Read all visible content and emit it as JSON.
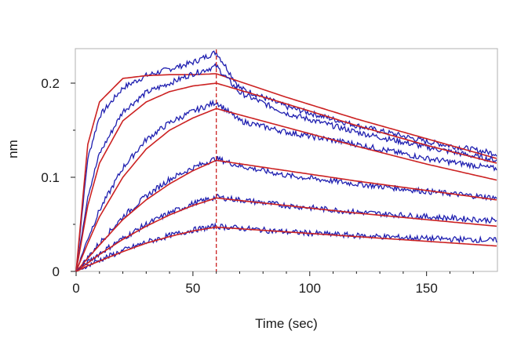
{
  "chart_data": {
    "type": "line",
    "title": "",
    "xlabel": "Time (sec)",
    "ylabel": "nm",
    "xlim": [
      0,
      180
    ],
    "ylim": [
      0,
      0.235
    ],
    "x_ticks": [
      0,
      50,
      100,
      150
    ],
    "y_ticks": [
      0,
      0.1,
      0.2
    ],
    "x_tick_labels": [
      "0",
      "50",
      "100",
      "150"
    ],
    "y_tick_labels": [
      "0",
      "0.1",
      "0.2"
    ],
    "grid": false,
    "legend": "none",
    "association_end": 60,
    "marker_line": {
      "x": 60,
      "style": "dashed",
      "color": "#cc2222"
    },
    "colors": {
      "measured": "#1f1fb0",
      "fit": "#cc2222",
      "frame": "#b0b0b0"
    },
    "series": [
      {
        "kind": "measured",
        "points": [
          [
            0,
            0
          ],
          [
            5,
            0.12
          ],
          [
            10,
            0.165
          ],
          [
            20,
            0.195
          ],
          [
            30,
            0.208
          ],
          [
            40,
            0.215
          ],
          [
            50,
            0.222
          ],
          [
            60,
            0.233
          ],
          [
            70,
            0.195
          ],
          [
            90,
            0.175
          ],
          [
            120,
            0.155
          ],
          [
            150,
            0.138
          ],
          [
            180,
            0.125
          ]
        ]
      },
      {
        "kind": "fit",
        "points": [
          [
            0,
            0
          ],
          [
            5,
            0.135
          ],
          [
            10,
            0.18
          ],
          [
            20,
            0.205
          ],
          [
            30,
            0.208
          ],
          [
            40,
            0.209
          ],
          [
            50,
            0.209
          ],
          [
            60,
            0.21
          ],
          [
            90,
            0.185
          ],
          [
            120,
            0.162
          ],
          [
            150,
            0.141
          ],
          [
            180,
            0.12
          ]
        ]
      },
      {
        "kind": "measured",
        "points": [
          [
            0,
            0
          ],
          [
            5,
            0.08
          ],
          [
            10,
            0.125
          ],
          [
            20,
            0.17
          ],
          [
            30,
            0.19
          ],
          [
            40,
            0.2
          ],
          [
            50,
            0.21
          ],
          [
            60,
            0.218
          ],
          [
            70,
            0.19
          ],
          [
            90,
            0.168
          ],
          [
            120,
            0.148
          ],
          [
            150,
            0.132
          ],
          [
            180,
            0.118
          ]
        ]
      },
      {
        "kind": "fit",
        "points": [
          [
            0,
            0
          ],
          [
            5,
            0.07
          ],
          [
            10,
            0.115
          ],
          [
            20,
            0.16
          ],
          [
            30,
            0.18
          ],
          [
            40,
            0.191
          ],
          [
            50,
            0.197
          ],
          [
            60,
            0.2
          ],
          [
            90,
            0.178
          ],
          [
            120,
            0.155
          ],
          [
            150,
            0.134
          ],
          [
            180,
            0.115
          ]
        ]
      },
      {
        "kind": "measured",
        "points": [
          [
            0,
            0
          ],
          [
            5,
            0.035
          ],
          [
            10,
            0.065
          ],
          [
            20,
            0.11
          ],
          [
            30,
            0.14
          ],
          [
            40,
            0.158
          ],
          [
            50,
            0.17
          ],
          [
            60,
            0.18
          ],
          [
            70,
            0.16
          ],
          [
            90,
            0.148
          ],
          [
            120,
            0.135
          ],
          [
            150,
            0.12
          ],
          [
            180,
            0.109
          ]
        ]
      },
      {
        "kind": "fit",
        "points": [
          [
            0,
            0
          ],
          [
            5,
            0.03
          ],
          [
            10,
            0.058
          ],
          [
            20,
            0.1
          ],
          [
            30,
            0.13
          ],
          [
            40,
            0.15
          ],
          [
            50,
            0.163
          ],
          [
            60,
            0.173
          ],
          [
            90,
            0.153
          ],
          [
            120,
            0.133
          ],
          [
            150,
            0.114
          ],
          [
            180,
            0.097
          ]
        ]
      },
      {
        "kind": "measured",
        "points": [
          [
            0,
            0
          ],
          [
            5,
            0.015
          ],
          [
            10,
            0.03
          ],
          [
            20,
            0.058
          ],
          [
            30,
            0.08
          ],
          [
            40,
            0.098
          ],
          [
            50,
            0.11
          ],
          [
            60,
            0.12
          ],
          [
            70,
            0.112
          ],
          [
            90,
            0.102
          ],
          [
            120,
            0.093
          ],
          [
            150,
            0.085
          ],
          [
            180,
            0.078
          ]
        ]
      },
      {
        "kind": "fit",
        "points": [
          [
            0,
            0
          ],
          [
            5,
            0.014
          ],
          [
            10,
            0.028
          ],
          [
            20,
            0.055
          ],
          [
            30,
            0.076
          ],
          [
            40,
            0.093
          ],
          [
            50,
            0.107
          ],
          [
            60,
            0.118
          ],
          [
            90,
            0.107
          ],
          [
            120,
            0.096
          ],
          [
            150,
            0.086
          ],
          [
            180,
            0.076
          ]
        ]
      },
      {
        "kind": "measured",
        "points": [
          [
            0,
            0
          ],
          [
            5,
            0.01
          ],
          [
            10,
            0.019
          ],
          [
            20,
            0.035
          ],
          [
            30,
            0.05
          ],
          [
            40,
            0.062
          ],
          [
            50,
            0.072
          ],
          [
            60,
            0.079
          ],
          [
            70,
            0.076
          ],
          [
            90,
            0.07
          ],
          [
            120,
            0.063
          ],
          [
            150,
            0.058
          ],
          [
            180,
            0.054
          ]
        ]
      },
      {
        "kind": "fit",
        "points": [
          [
            0,
            0
          ],
          [
            5,
            0.009
          ],
          [
            10,
            0.018
          ],
          [
            20,
            0.034
          ],
          [
            30,
            0.048
          ],
          [
            40,
            0.06
          ],
          [
            50,
            0.07
          ],
          [
            60,
            0.078
          ],
          [
            90,
            0.07
          ],
          [
            120,
            0.062
          ],
          [
            150,
            0.055
          ],
          [
            180,
            0.048
          ]
        ]
      },
      {
        "kind": "measured",
        "points": [
          [
            0,
            0
          ],
          [
            5,
            0.006
          ],
          [
            10,
            0.012
          ],
          [
            20,
            0.022
          ],
          [
            30,
            0.031
          ],
          [
            40,
            0.038
          ],
          [
            50,
            0.044
          ],
          [
            60,
            0.048
          ],
          [
            70,
            0.046
          ],
          [
            90,
            0.042
          ],
          [
            120,
            0.038
          ],
          [
            150,
            0.035
          ],
          [
            180,
            0.033
          ]
        ]
      },
      {
        "kind": "fit",
        "points": [
          [
            0,
            0
          ],
          [
            5,
            0.006
          ],
          [
            10,
            0.011
          ],
          [
            20,
            0.021
          ],
          [
            30,
            0.03
          ],
          [
            40,
            0.037
          ],
          [
            50,
            0.043
          ],
          [
            60,
            0.047
          ],
          [
            90,
            0.042
          ],
          [
            120,
            0.037
          ],
          [
            150,
            0.032
          ],
          [
            180,
            0.027
          ]
        ]
      }
    ]
  }
}
